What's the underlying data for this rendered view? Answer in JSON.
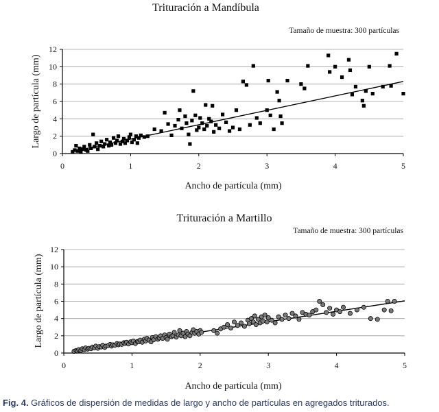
{
  "chart_data": [
    {
      "type": "scatter",
      "title": "Trituración a Mandíbula",
      "annotation": "Tamaño de muestra: 300 partículas",
      "xlabel": "Ancho de partícula (mm)",
      "ylabel": "Largo de partícula (mm)",
      "xlim": [
        0,
        5
      ],
      "ylim": [
        0,
        12
      ],
      "x_ticks": [
        0,
        1,
        2,
        3,
        4,
        5
      ],
      "y_ticks": [
        0,
        2,
        4,
        6,
        8,
        10,
        12
      ],
      "gridlines": "horizontal",
      "marker": "square",
      "trendline": {
        "type": "linear",
        "slope": 1.66,
        "intercept": 0.0
      },
      "series": [
        {
          "name": "Mandíbula",
          "points": [
            [
              0.15,
              0.2
            ],
            [
              0.18,
              0.4
            ],
            [
              0.2,
              0.9
            ],
            [
              0.22,
              0.3
            ],
            [
              0.25,
              0.6
            ],
            [
              0.27,
              0.2
            ],
            [
              0.3,
              0.5
            ],
            [
              0.32,
              0.8
            ],
            [
              0.35,
              0.4
            ],
            [
              0.37,
              0.3
            ],
            [
              0.4,
              1.0
            ],
            [
              0.42,
              0.6
            ],
            [
              0.45,
              2.2
            ],
            [
              0.47,
              0.8
            ],
            [
              0.5,
              1.2
            ],
            [
              0.52,
              0.5
            ],
            [
              0.55,
              0.9
            ],
            [
              0.57,
              1.4
            ],
            [
              0.6,
              0.8
            ],
            [
              0.62,
              1.1
            ],
            [
              0.65,
              1.6
            ],
            [
              0.68,
              0.9
            ],
            [
              0.7,
              1.3
            ],
            [
              0.72,
              1.0
            ],
            [
              0.75,
              1.8
            ],
            [
              0.78,
              1.2
            ],
            [
              0.8,
              1.5
            ],
            [
              0.82,
              2.0
            ],
            [
              0.85,
              1.1
            ],
            [
              0.88,
              1.4
            ],
            [
              0.9,
              1.7
            ],
            [
              0.92,
              1.2
            ],
            [
              0.95,
              1.5
            ],
            [
              0.98,
              1.9
            ],
            [
              1.0,
              2.2
            ],
            [
              1.02,
              1.3
            ],
            [
              1.05,
              1.6
            ],
            [
              1.08,
              2.0
            ],
            [
              1.1,
              1.2
            ],
            [
              1.12,
              1.8
            ],
            [
              1.15,
              2.1
            ],
            [
              1.2,
              1.9
            ],
            [
              1.25,
              2.0
            ],
            [
              1.35,
              2.8
            ],
            [
              1.45,
              2.6
            ],
            [
              1.5,
              4.7
            ],
            [
              1.55,
              3.4
            ],
            [
              1.6,
              2.1
            ],
            [
              1.65,
              3.2
            ],
            [
              1.7,
              3.9
            ],
            [
              1.72,
              5.0
            ],
            [
              1.75,
              2.9
            ],
            [
              1.8,
              4.3
            ],
            [
              1.82,
              3.5
            ],
            [
              1.85,
              2.2
            ],
            [
              1.87,
              1.1
            ],
            [
              1.9,
              3.8
            ],
            [
              1.92,
              7.2
            ],
            [
              1.95,
              4.4
            ],
            [
              1.97,
              2.7
            ],
            [
              2.0,
              3.0
            ],
            [
              2.02,
              4.1
            ],
            [
              2.05,
              3.5
            ],
            [
              2.08,
              2.8
            ],
            [
              2.1,
              5.6
            ],
            [
              2.12,
              3.2
            ],
            [
              2.15,
              4.0
            ],
            [
              2.18,
              3.7
            ],
            [
              2.2,
              5.5
            ],
            [
              2.22,
              2.5
            ],
            [
              2.25,
              3.3
            ],
            [
              2.3,
              2.9
            ],
            [
              2.35,
              4.5
            ],
            [
              2.4,
              3.6
            ],
            [
              2.45,
              2.6
            ],
            [
              2.5,
              3.0
            ],
            [
              2.55,
              5.0
            ],
            [
              2.6,
              2.8
            ],
            [
              2.65,
              8.3
            ],
            [
              2.7,
              7.9
            ],
            [
              2.75,
              3.3
            ],
            [
              2.8,
              10.1
            ],
            [
              2.85,
              4.1
            ],
            [
              2.9,
              3.5
            ],
            [
              3.0,
              5.0
            ],
            [
              3.02,
              8.4
            ],
            [
              3.05,
              4.4
            ],
            [
              3.1,
              2.8
            ],
            [
              3.15,
              7.1
            ],
            [
              3.18,
              6.1
            ],
            [
              3.2,
              4.3
            ],
            [
              3.22,
              3.5
            ],
            [
              3.3,
              8.4
            ],
            [
              3.5,
              8.0
            ],
            [
              3.55,
              7.5
            ],
            [
              3.6,
              10.1
            ],
            [
              3.9,
              11.3
            ],
            [
              3.92,
              9.4
            ],
            [
              4.0,
              10.0
            ],
            [
              4.1,
              8.8
            ],
            [
              4.2,
              10.8
            ],
            [
              4.22,
              9.6
            ],
            [
              4.25,
              6.8
            ],
            [
              4.3,
              7.7
            ],
            [
              4.4,
              6.1
            ],
            [
              4.42,
              5.5
            ],
            [
              4.45,
              7.2
            ],
            [
              4.5,
              10.0
            ],
            [
              4.55,
              6.9
            ],
            [
              4.7,
              7.7
            ],
            [
              4.8,
              10.1
            ],
            [
              4.82,
              7.8
            ],
            [
              4.9,
              11.5
            ],
            [
              5.0,
              6.9
            ]
          ]
        }
      ]
    },
    {
      "type": "scatter",
      "title": "Trituración a Martillo",
      "annotation": "Tamaño de muestra: 300 partículas",
      "xlabel": "Ancho de partícula (mm)",
      "ylabel": "Largo de partícula (mm)",
      "xlim": [
        0,
        5
      ],
      "ylim": [
        0,
        12
      ],
      "x_ticks": [
        0,
        1,
        2,
        3,
        4,
        5
      ],
      "y_ticks": [
        0,
        2,
        4,
        6,
        8,
        10,
        12
      ],
      "gridlines": "horizontal",
      "marker": "circle",
      "trendline": {
        "type": "linear",
        "slope": 1.21,
        "intercept": 0.0
      },
      "series": [
        {
          "name": "Martillo",
          "points": [
            [
              0.15,
              0.2
            ],
            [
              0.18,
              0.3
            ],
            [
              0.2,
              0.25
            ],
            [
              0.22,
              0.4
            ],
            [
              0.25,
              0.3
            ],
            [
              0.27,
              0.5
            ],
            [
              0.3,
              0.4
            ],
            [
              0.32,
              0.6
            ],
            [
              0.35,
              0.45
            ],
            [
              0.37,
              0.55
            ],
            [
              0.4,
              0.5
            ],
            [
              0.42,
              0.7
            ],
            [
              0.45,
              0.6
            ],
            [
              0.47,
              0.8
            ],
            [
              0.5,
              0.55
            ],
            [
              0.52,
              0.75
            ],
            [
              0.55,
              0.7
            ],
            [
              0.57,
              0.9
            ],
            [
              0.6,
              0.65
            ],
            [
              0.62,
              0.8
            ],
            [
              0.65,
              0.85
            ],
            [
              0.68,
              1.0
            ],
            [
              0.7,
              0.8
            ],
            [
              0.72,
              0.95
            ],
            [
              0.75,
              0.9
            ],
            [
              0.78,
              1.1
            ],
            [
              0.8,
              0.95
            ],
            [
              0.82,
              1.05
            ],
            [
              0.85,
              1.0
            ],
            [
              0.88,
              1.2
            ],
            [
              0.9,
              1.1
            ],
            [
              0.92,
              1.25
            ],
            [
              0.95,
              1.05
            ],
            [
              0.98,
              1.3
            ],
            [
              1.0,
              1.2
            ],
            [
              1.02,
              1.4
            ],
            [
              1.05,
              1.1
            ],
            [
              1.08,
              1.35
            ],
            [
              1.1,
              1.3
            ],
            [
              1.12,
              1.5
            ],
            [
              1.15,
              1.25
            ],
            [
              1.18,
              1.6
            ],
            [
              1.2,
              1.4
            ],
            [
              1.22,
              1.7
            ],
            [
              1.25,
              1.5
            ],
            [
              1.28,
              1.3
            ],
            [
              1.3,
              1.8
            ],
            [
              1.32,
              1.55
            ],
            [
              1.35,
              1.9
            ],
            [
              1.38,
              1.6
            ],
            [
              1.4,
              1.75
            ],
            [
              1.42,
              2.0
            ],
            [
              1.45,
              1.7
            ],
            [
              1.48,
              2.1
            ],
            [
              1.5,
              1.8
            ],
            [
              1.52,
              1.6
            ],
            [
              1.55,
              2.2
            ],
            [
              1.58,
              1.9
            ],
            [
              1.6,
              2.0
            ],
            [
              1.62,
              2.4
            ],
            [
              1.65,
              1.85
            ],
            [
              1.68,
              2.1
            ],
            [
              1.7,
              2.6
            ],
            [
              1.72,
              2.0
            ],
            [
              1.75,
              2.3
            ],
            [
              1.78,
              1.9
            ],
            [
              1.8,
              2.5
            ],
            [
              1.82,
              2.2
            ],
            [
              1.85,
              2.0
            ],
            [
              1.88,
              2.4
            ],
            [
              1.9,
              2.7
            ],
            [
              1.92,
              2.3
            ],
            [
              1.95,
              2.5
            ],
            [
              1.98,
              2.2
            ],
            [
              2.0,
              2.6
            ],
            [
              2.02,
              2.4
            ],
            [
              2.2,
              2.6
            ],
            [
              2.25,
              2.3
            ],
            [
              2.3,
              2.8
            ],
            [
              2.35,
              3.0
            ],
            [
              2.4,
              3.3
            ],
            [
              2.45,
              2.9
            ],
            [
              2.5,
              3.6
            ],
            [
              2.55,
              3.2
            ],
            [
              2.6,
              3.5
            ],
            [
              2.65,
              3.1
            ],
            [
              2.7,
              3.8
            ],
            [
              2.72,
              3.4
            ],
            [
              2.75,
              4.0
            ],
            [
              2.78,
              3.6
            ],
            [
              2.8,
              4.3
            ],
            [
              2.82,
              3.3
            ],
            [
              2.85,
              3.9
            ],
            [
              2.88,
              3.5
            ],
            [
              2.9,
              4.2
            ],
            [
              2.92,
              3.7
            ],
            [
              2.95,
              4.4
            ],
            [
              2.98,
              3.6
            ],
            [
              3.0,
              4.1
            ],
            [
              3.05,
              3.8
            ],
            [
              3.1,
              3.5
            ],
            [
              3.15,
              4.2
            ],
            [
              3.2,
              3.9
            ],
            [
              3.25,
              4.4
            ],
            [
              3.3,
              4.0
            ],
            [
              3.35,
              4.6
            ],
            [
              3.4,
              4.3
            ],
            [
              3.45,
              3.9
            ],
            [
              3.5,
              4.7
            ],
            [
              3.55,
              4.5
            ],
            [
              3.6,
              4.4
            ],
            [
              3.65,
              4.8
            ],
            [
              3.7,
              5.0
            ],
            [
              3.75,
              6.0
            ],
            [
              3.8,
              5.6
            ],
            [
              3.85,
              4.7
            ],
            [
              3.9,
              5.2
            ],
            [
              3.95,
              4.5
            ],
            [
              4.0,
              5.0
            ],
            [
              4.05,
              4.8
            ],
            [
              4.1,
              5.3
            ],
            [
              4.2,
              4.6
            ],
            [
              4.3,
              5.0
            ],
            [
              4.4,
              5.3
            ],
            [
              4.5,
              4.0
            ],
            [
              4.6,
              3.9
            ],
            [
              4.7,
              5.0
            ],
            [
              4.75,
              6.0
            ],
            [
              4.8,
              4.9
            ],
            [
              4.85,
              6.0
            ]
          ]
        }
      ]
    }
  ],
  "caption": {
    "label": "Fig. 4.",
    "text": " Gráficos de dispersión de medidas de largo y ancho de partículas en agregados triturados."
  }
}
